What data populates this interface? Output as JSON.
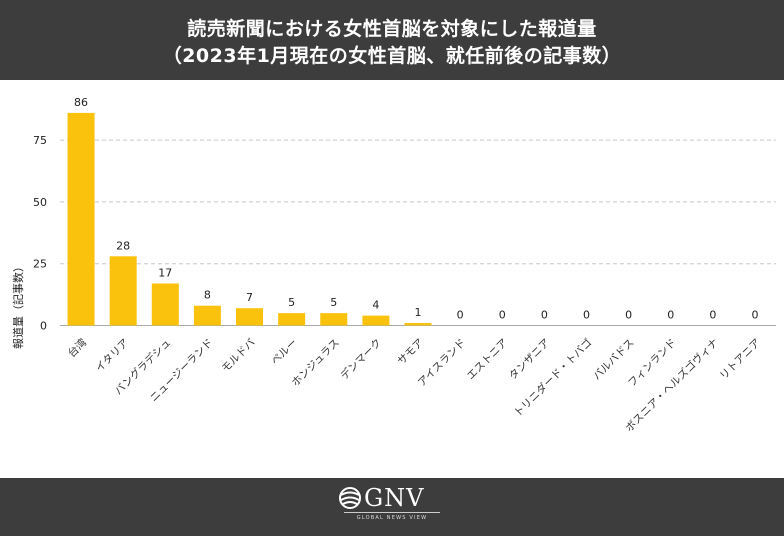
{
  "header": {
    "title_line1": "読売新聞における女性首脳を対象にした報道量",
    "title_line2": "（2023年1月現在の女性首脳、就任前後の記事数）"
  },
  "chart_data": {
    "type": "bar",
    "title": "読売新聞における女性首脳を対象にした報道量（2023年1月現在の女性首脳、就任前後の記事数）",
    "xlabel": "",
    "ylabel": "報道量（記事数）",
    "categories": [
      "台湾",
      "イタリア",
      "バングラデシュ",
      "ニュージーランド",
      "モルドバ",
      "ペルー",
      "ホンジュラス",
      "デンマーク",
      "サモア",
      "アイスランド",
      "エストニア",
      "タンザニア",
      "トリニダード・トバゴ",
      "バルバドス",
      "フィンランド",
      "ボスニア・ヘルズゴヴィナ",
      "リトアニア"
    ],
    "values": [
      86,
      28,
      17,
      8,
      7,
      5,
      5,
      4,
      1,
      0,
      0,
      0,
      0,
      0,
      0,
      0,
      0
    ],
    "yticks": [
      0,
      25,
      50,
      75
    ],
    "ylim": [
      0,
      90
    ],
    "grid": true,
    "colors": {
      "bar": "#fbc20d",
      "grid": "#c8c8c8",
      "axis": "#aaaaaa"
    }
  },
  "footer": {
    "logo_text": "GNV",
    "logo_subtitle": "GLOBAL NEWS VIEW"
  }
}
